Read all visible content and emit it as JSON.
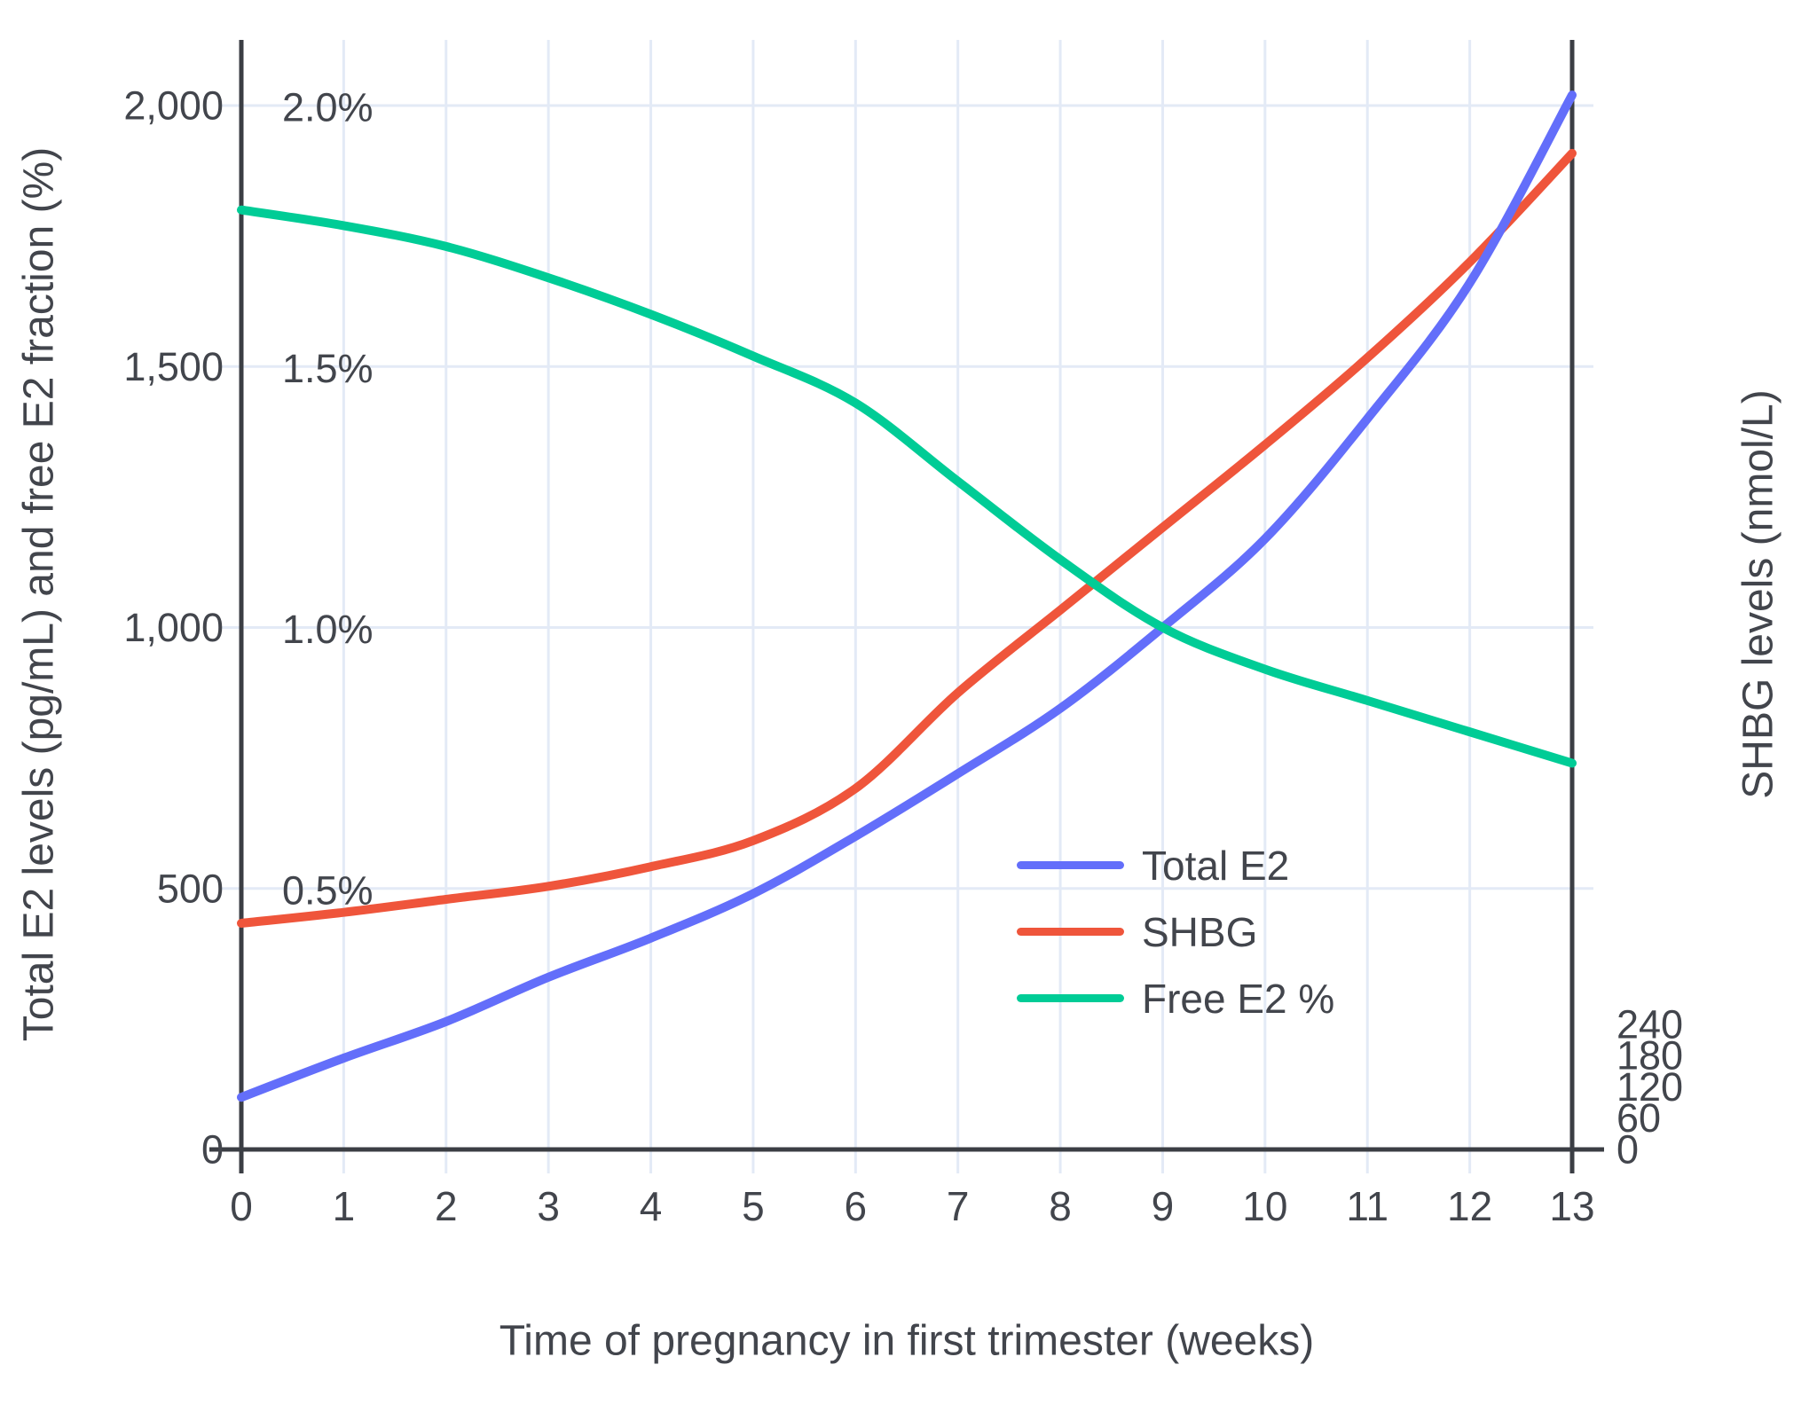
{
  "chart_data": {
    "type": "line",
    "title": "",
    "xlabel": "Time of pregnancy in first trimester (weeks)",
    "ylabel_left": "Total E2 levels (pg/mL) and free E2 fraction (%)",
    "ylabel_right": "SHBG levels (nmol/L)",
    "x": [
      0,
      1,
      2,
      3,
      4,
      5,
      6,
      7,
      8,
      9,
      10,
      11,
      12,
      13
    ],
    "x_tick_labels": [
      "0",
      "1",
      "2",
      "3",
      "4",
      "5",
      "6",
      "7",
      "8",
      "9",
      "10",
      "11",
      "12",
      "13"
    ],
    "y_left_range": [
      0,
      2000
    ],
    "y_right_range": [
      0,
      240
    ],
    "y_percent_range": [
      0,
      2.0
    ],
    "y_left_ticks": [
      {
        "v": 0,
        "label": "0"
      },
      {
        "v": 500,
        "label": "500"
      },
      {
        "v": 1000,
        "label": "1,000"
      },
      {
        "v": 1500,
        "label": "1,500"
      },
      {
        "v": 2000,
        "label": "2,000"
      }
    ],
    "y_percent_ticks": [
      {
        "v": 500,
        "label": "0.5%"
      },
      {
        "v": 1000,
        "label": "1.0%"
      },
      {
        "v": 1500,
        "label": "1.5%"
      },
      {
        "v": 2000,
        "label": "2.0%"
      }
    ],
    "y_right_ticks": [
      {
        "v": 0,
        "label": "0"
      },
      {
        "v": 60,
        "label": "60"
      },
      {
        "v": 120,
        "label": "120"
      },
      {
        "v": 180,
        "label": "180"
      },
      {
        "v": 240,
        "label": "240"
      }
    ],
    "grid": true,
    "legend_position": "inside-right-middle",
    "series": [
      {
        "name": "Total E2",
        "axis": "left",
        "unit": "pg/mL",
        "color": "#636EFA",
        "values": [
          100,
          175,
          245,
          330,
          405,
          490,
          600,
          720,
          845,
          1000,
          1170,
          1400,
          1660,
          2020
        ]
      },
      {
        "name": "SHBG",
        "axis": "right",
        "unit": "nmol/L",
        "color": "#EF553B",
        "values": [
          52,
          54.5,
          57.5,
          60.5,
          65,
          71,
          83,
          105,
          124,
          143,
          162,
          182,
          204,
          229
        ]
      },
      {
        "name": "Free E2 %",
        "axis": "percent",
        "unit": "%",
        "color": "#00CC96",
        "values": [
          1.8,
          1.77,
          1.73,
          1.67,
          1.6,
          1.52,
          1.43,
          1.28,
          1.13,
          1.0,
          0.92,
          0.86,
          0.8,
          0.74
        ]
      }
    ]
  },
  "style": {
    "background": "#FFFFFF",
    "grid_color": "#E3EAF6",
    "axis_color": "#3B3E44",
    "text_color": "#42454C"
  }
}
